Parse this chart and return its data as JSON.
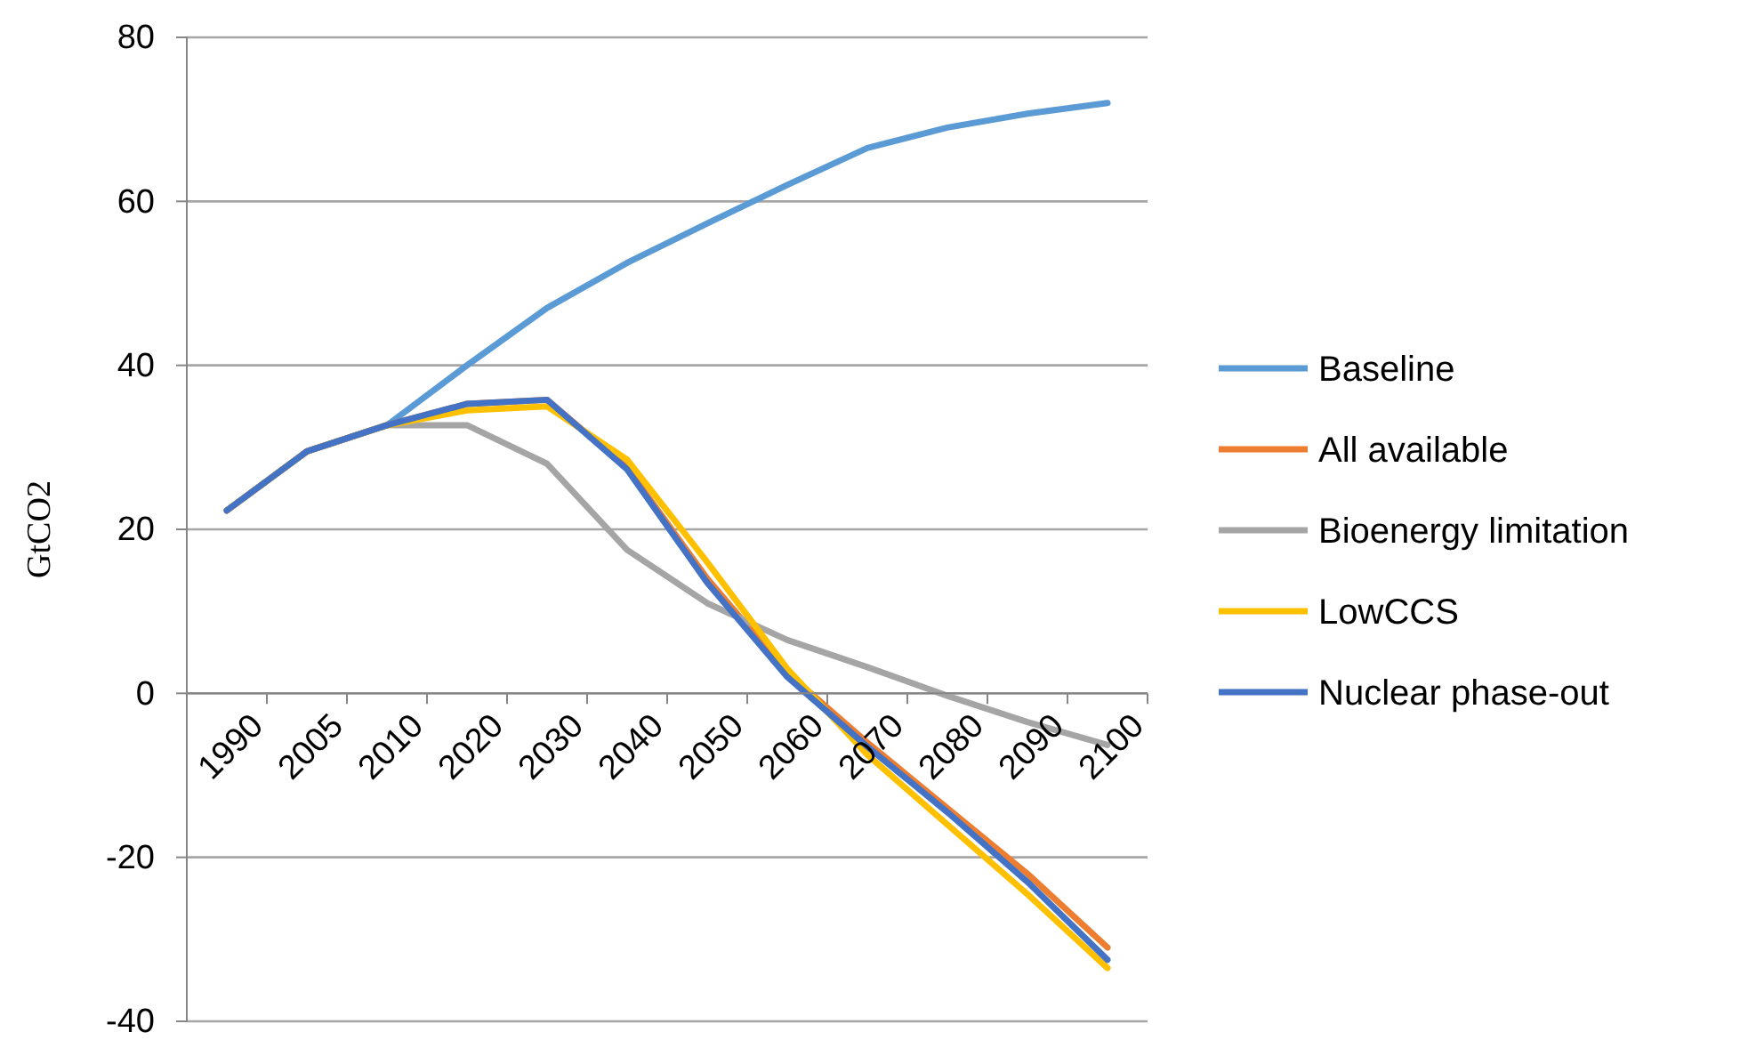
{
  "chart_data": {
    "type": "line",
    "ylabel": "GtCO2",
    "categories": [
      "1990",
      "2005",
      "2010",
      "2020",
      "2030",
      "2040",
      "2050",
      "2060",
      "2070",
      "2080",
      "2090",
      "2100"
    ],
    "series": [
      {
        "name": "Baseline",
        "color": "#5b9bd5",
        "values": [
          22.3,
          29.5,
          32.7,
          40,
          47,
          52.5,
          57.3,
          62,
          66.5,
          69,
          70.7,
          72
        ]
      },
      {
        "name": "All available",
        "color": "#ed7d31",
        "values": [
          22.3,
          29.5,
          32.7,
          35.3,
          35.8,
          27.5,
          14,
          2.5,
          -6,
          -14,
          -22,
          -31
        ]
      },
      {
        "name": "Bioenergy limitation",
        "color": "#a5a5a5",
        "values": [
          22.3,
          29.5,
          32.7,
          32.7,
          28,
          17.5,
          11,
          6.5,
          3.2,
          -0.3,
          -3.5,
          -6.3
        ]
      },
      {
        "name": "LowCCS",
        "color": "#ffc000",
        "values": [
          22.3,
          29.5,
          32.7,
          34.5,
          35,
          28.5,
          16,
          3,
          -7.5,
          -16,
          -24.5,
          -33.5
        ]
      },
      {
        "name": "Nuclear phase-out",
        "color": "#4472c4",
        "values": [
          22.3,
          29.5,
          32.7,
          35.3,
          35.8,
          27.3,
          13.5,
          2,
          -6.5,
          -14.5,
          -23,
          -32.5
        ]
      }
    ],
    "ylim": [
      -40,
      80
    ],
    "yticks": [
      -40,
      -20,
      0,
      20,
      40,
      60,
      80
    ],
    "grid": "y",
    "legend": "right",
    "marker": "none",
    "line_style": "solid"
  }
}
